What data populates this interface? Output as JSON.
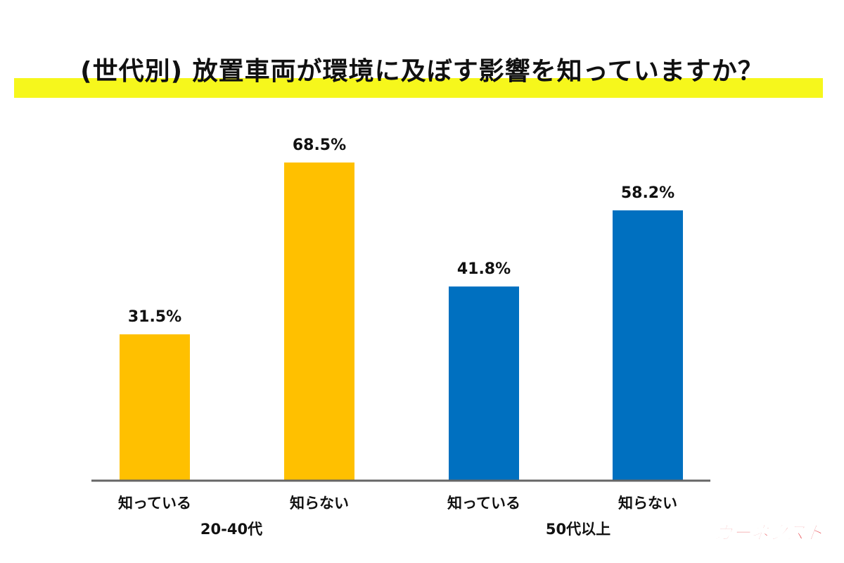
{
  "title": "(世代別) 放置車両が環境に及ぼす影響を知っていますか？",
  "logo_text": "カーネクスト",
  "colors": {
    "highlight": "#f6f71c",
    "group1": "#ffc000",
    "group2": "#0070c0",
    "axis": "#666666",
    "logo": "#e11f26"
  },
  "chart_data": {
    "type": "bar",
    "title": "(世代別) 放置車両が環境に及ぼす影響を知っていますか？",
    "ylim": [
      0,
      100
    ],
    "grid": false,
    "legend": "none",
    "groups": [
      {
        "name": "20-40代",
        "color": "#ffc000",
        "bars": [
          {
            "category": "知っている",
            "value": 31.5,
            "label": "31.5%"
          },
          {
            "category": "知らない",
            "value": 68.5,
            "label": "68.5%"
          }
        ]
      },
      {
        "name": "50代以上",
        "color": "#0070c0",
        "bars": [
          {
            "category": "知っている",
            "value": 41.8,
            "label": "41.8%"
          },
          {
            "category": "知らない",
            "value": 58.2,
            "label": "58.2%"
          }
        ]
      }
    ]
  }
}
